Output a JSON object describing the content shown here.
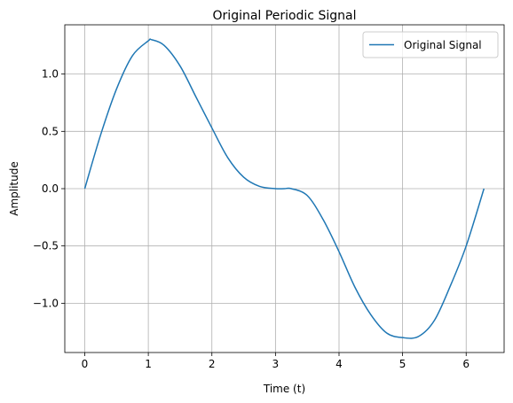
{
  "chart_data": {
    "type": "line",
    "title": "Original Periodic Signal",
    "xlabel": "Time (t)",
    "ylabel": "Amplitude",
    "xlim": [
      -0.314,
      6.597
    ],
    "ylim": [
      -1.43,
      1.43
    ],
    "grid": true,
    "legend_position": "top-right",
    "x_ticks": [
      0,
      1,
      2,
      3,
      4,
      5,
      6
    ],
    "x_tick_labels": [
      "0",
      "1",
      "2",
      "3",
      "4",
      "5",
      "6"
    ],
    "y_ticks": [
      -1.0,
      -0.5,
      0.0,
      0.5,
      1.0
    ],
    "y_tick_labels": [
      "−1.0",
      "−0.5",
      "0.0",
      "0.5",
      "1.0"
    ],
    "series": [
      {
        "name": "Original Signal",
        "color": "#1f77b4",
        "x": [
          0,
          0.25,
          0.5,
          0.75,
          1.0,
          1.05,
          1.25,
          1.5,
          1.75,
          2.0,
          2.25,
          2.5,
          2.75,
          3.0,
          3.14,
          3.25,
          3.5,
          3.75,
          4.0,
          4.25,
          4.5,
          4.75,
          5.0,
          5.25,
          5.5,
          5.75,
          6.0,
          6.28
        ],
        "y": [
          0.0,
          0.47,
          0.87,
          1.16,
          1.29,
          1.3,
          1.25,
          1.07,
          0.8,
          0.53,
          0.27,
          0.1,
          0.02,
          0.0,
          0.0,
          0.0,
          -0.06,
          -0.27,
          -0.55,
          -0.86,
          -1.1,
          -1.26,
          -1.3,
          -1.29,
          -1.15,
          -0.85,
          -0.5,
          0.0
        ]
      }
    ]
  }
}
